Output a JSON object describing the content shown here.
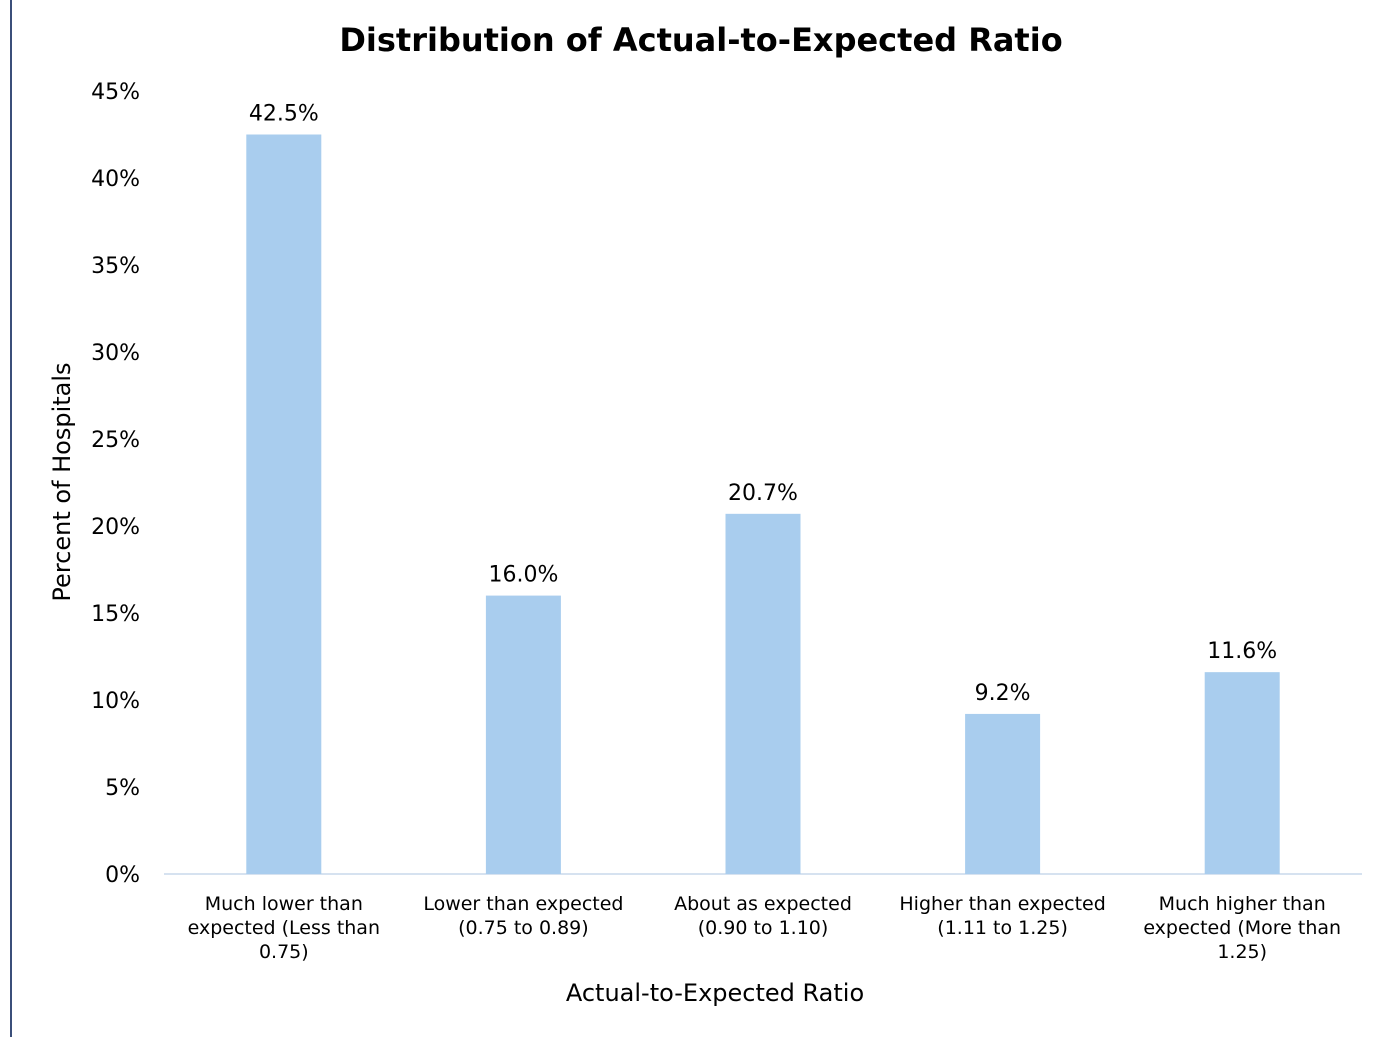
{
  "chart_data": {
    "type": "bar",
    "title": "Distribution of Actual-to-Expected Ratio",
    "xlabel": "Actual-to-Expected Ratio",
    "ylabel": "Percent of Hospitals",
    "categories": [
      [
        "Much lower than",
        "expected (Less than",
        "0.75)"
      ],
      [
        "Lower than expected",
        "(0.75 to 0.89)"
      ],
      [
        "About as expected",
        "(0.90 to 1.10)"
      ],
      [
        "Higher than expected",
        "(1.11 to 1.25)"
      ],
      [
        "Much higher than",
        "expected (More than",
        "1.25)"
      ]
    ],
    "values": [
      42.5,
      16.0,
      20.7,
      9.2,
      11.6
    ],
    "data_labels": [
      "42.5%",
      "16.0%",
      "20.7%",
      "9.2%",
      "11.6%"
    ],
    "ylim": [
      0,
      45
    ],
    "yticks": [
      "0%",
      "5%",
      "10%",
      "15%",
      "20%",
      "25%",
      "30%",
      "35%",
      "40%",
      "45%"
    ],
    "grid": false,
    "legend": "none",
    "bar_color": "#a9cdee",
    "axis_color": "#c8d8ec"
  }
}
